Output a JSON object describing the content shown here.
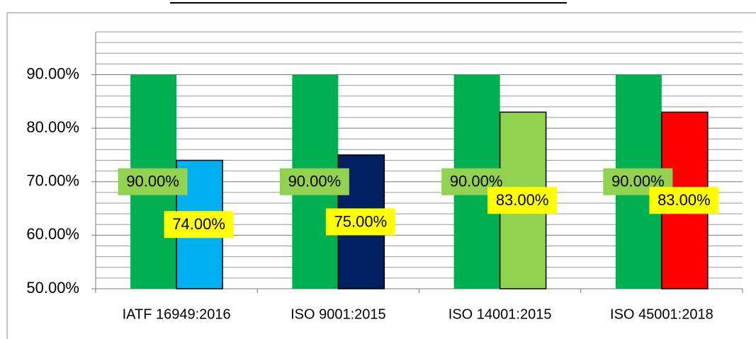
{
  "chart_data": {
    "type": "bar",
    "categories": [
      "IATF 16949:2016",
      "ISO 9001:2015",
      "ISO 14001:2015",
      "ISO 45001:2018"
    ],
    "series": [
      {
        "color": "#00b050",
        "values": [
          90,
          90,
          90,
          90
        ],
        "value_labels": [
          "90.00%",
          "90.00%",
          "90.00%",
          "90.00%"
        ],
        "label_color": "#92d050"
      },
      {
        "colors": [
          "#00b0f0",
          "#002060",
          "#92d050",
          "#ff0000"
        ],
        "values": [
          74,
          75,
          83,
          83
        ],
        "value_labels": [
          "74.00%",
          "75.00%",
          "83.00%",
          "83.00%"
        ],
        "label_color": "#ffff00"
      }
    ],
    "ylim": [
      50,
      98
    ],
    "yticks": [
      {
        "value": 50,
        "label": "50.00%"
      },
      {
        "value": 60,
        "label": "60.00%"
      },
      {
        "value": 70,
        "label": "70.00%"
      },
      {
        "value": 80,
        "label": "80.00%"
      },
      {
        "value": 90,
        "label": "90.00%"
      }
    ],
    "yminorticks": [
      52,
      54,
      56,
      58,
      62,
      64,
      66,
      68,
      72,
      74,
      76,
      78,
      82,
      84,
      86,
      88,
      92,
      94,
      96,
      98
    ],
    "grid": true
  }
}
